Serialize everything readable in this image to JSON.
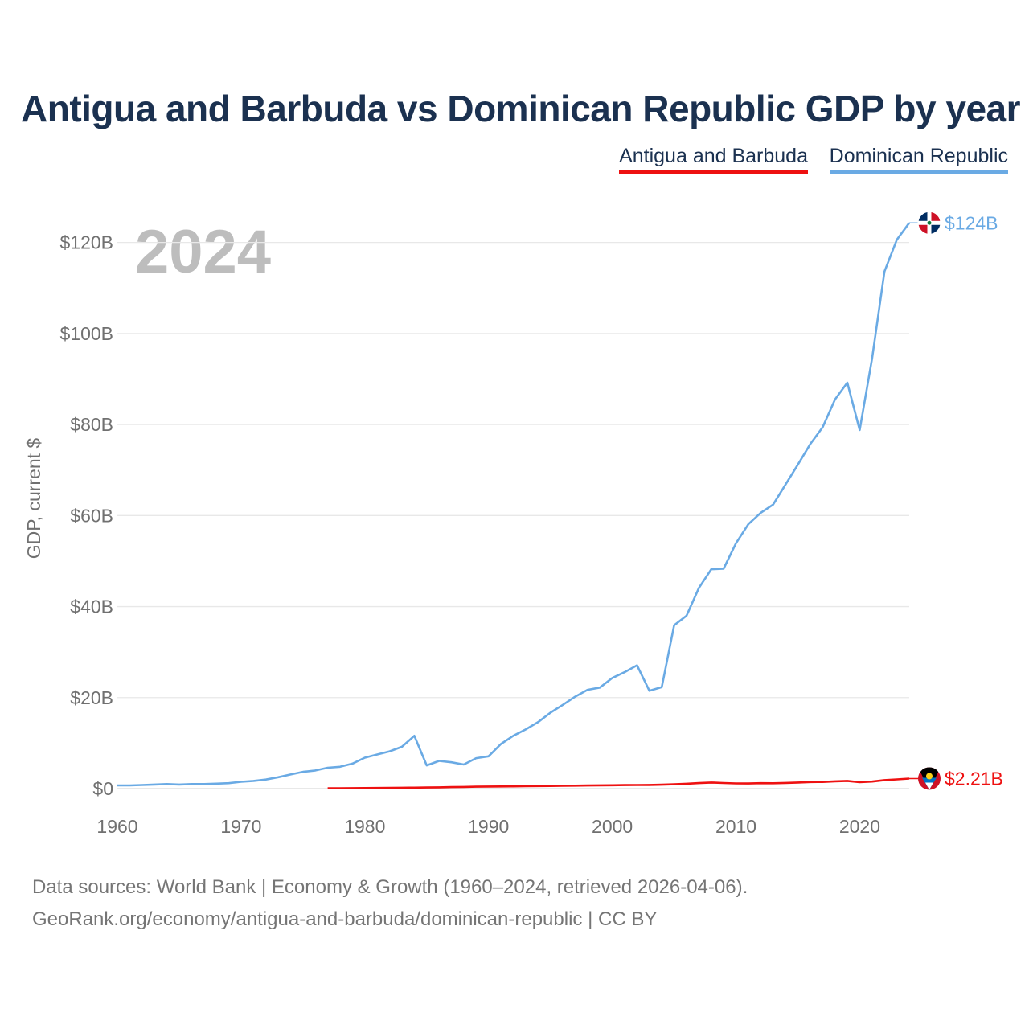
{
  "title": "Antigua and Barbuda vs Dominican Republic GDP by year",
  "legend": [
    "Antigua and Barbuda",
    "Dominican Republic"
  ],
  "year_label": "2024",
  "footer": {
    "line1": "Data sources: World Bank | Economy & Growth (1960–2024, retrieved 2026-04-06).",
    "line2": "GeoRank.org/economy/antigua-and-barbuda/dominican-republic | CC BY"
  },
  "colors": {
    "antigua": "#ee1111",
    "dominican": "#6aaae4",
    "title": "#1b3150",
    "axis_text": "#707070",
    "grid": "#e8e8e8",
    "year": "#bdbdbd"
  },
  "chart_data": {
    "type": "line",
    "title": "Antigua and Barbuda vs Dominican Republic GDP by year",
    "xlabel": "",
    "ylabel": "GDP, current $",
    "xlim": [
      1960,
      2024
    ],
    "ylim": [
      0,
      130
    ],
    "x_ticks": [
      1960,
      1970,
      1980,
      1990,
      2000,
      2010,
      2020
    ],
    "y_ticks": [
      0,
      20,
      40,
      60,
      80,
      100,
      120
    ],
    "y_tick_labels": [
      "$0",
      "$20B",
      "$40B",
      "$60B",
      "$80B",
      "$100B",
      "$120B"
    ],
    "grid": true,
    "legend_position": "top-right",
    "series": [
      {
        "name": "Dominican Republic",
        "color": "#6aaae4",
        "end_label": "$124B",
        "flag_icon": "dominican-republic-flag-icon",
        "x": [
          1960,
          1961,
          1962,
          1963,
          1964,
          1965,
          1966,
          1967,
          1968,
          1969,
          1970,
          1971,
          1972,
          1973,
          1974,
          1975,
          1976,
          1977,
          1978,
          1979,
          1980,
          1981,
          1982,
          1983,
          1984,
          1985,
          1986,
          1987,
          1988,
          1989,
          1990,
          1991,
          1992,
          1993,
          1994,
          1995,
          1996,
          1997,
          1998,
          1999,
          2000,
          2001,
          2002,
          2003,
          2004,
          2005,
          2006,
          2007,
          2008,
          2009,
          2010,
          2011,
          2012,
          2013,
          2014,
          2015,
          2016,
          2017,
          2018,
          2019,
          2020,
          2021,
          2022,
          2023,
          2024
        ],
        "values": [
          0.7,
          0.7,
          0.8,
          0.9,
          1.0,
          0.9,
          1.0,
          1.0,
          1.1,
          1.2,
          1.5,
          1.7,
          2.0,
          2.5,
          3.1,
          3.7,
          4.0,
          4.6,
          4.8,
          5.5,
          6.8,
          7.5,
          8.2,
          9.2,
          11.6,
          5.1,
          6.1,
          5.8,
          5.3,
          6.7,
          7.1,
          9.8,
          11.6,
          13.0,
          14.6,
          16.7,
          18.4,
          20.2,
          21.7,
          22.2,
          24.3,
          25.6,
          27.1,
          21.5,
          22.3,
          35.9,
          38.0,
          44.1,
          48.2,
          48.3,
          53.9,
          58.1,
          60.6,
          62.4,
          66.8,
          71.2,
          75.7,
          79.4,
          85.5,
          89.2,
          78.8,
          94.5,
          113.6,
          120.6,
          124.3
        ]
      },
      {
        "name": "Antigua and Barbuda",
        "color": "#ee1111",
        "end_label": "$2.21B",
        "flag_icon": "antigua-and-barbuda-flag-icon",
        "x": [
          1977,
          1978,
          1979,
          1980,
          1981,
          1982,
          1983,
          1984,
          1985,
          1986,
          1987,
          1988,
          1989,
          1990,
          1991,
          1992,
          1993,
          1994,
          1995,
          1996,
          1997,
          1998,
          1999,
          2000,
          2001,
          2002,
          2003,
          2004,
          2005,
          2006,
          2007,
          2008,
          2009,
          2010,
          2011,
          2012,
          2013,
          2014,
          2015,
          2016,
          2017,
          2018,
          2019,
          2020,
          2021,
          2022,
          2023,
          2024
        ],
        "values": [
          0.08,
          0.09,
          0.11,
          0.13,
          0.15,
          0.17,
          0.19,
          0.22,
          0.25,
          0.29,
          0.33,
          0.37,
          0.42,
          0.46,
          0.48,
          0.5,
          0.53,
          0.57,
          0.58,
          0.62,
          0.66,
          0.69,
          0.72,
          0.75,
          0.77,
          0.79,
          0.81,
          0.87,
          0.95,
          1.07,
          1.22,
          1.35,
          1.23,
          1.15,
          1.13,
          1.2,
          1.19,
          1.25,
          1.34,
          1.44,
          1.47,
          1.61,
          1.69,
          1.41,
          1.56,
          1.87,
          2.04,
          2.21
        ]
      }
    ]
  }
}
